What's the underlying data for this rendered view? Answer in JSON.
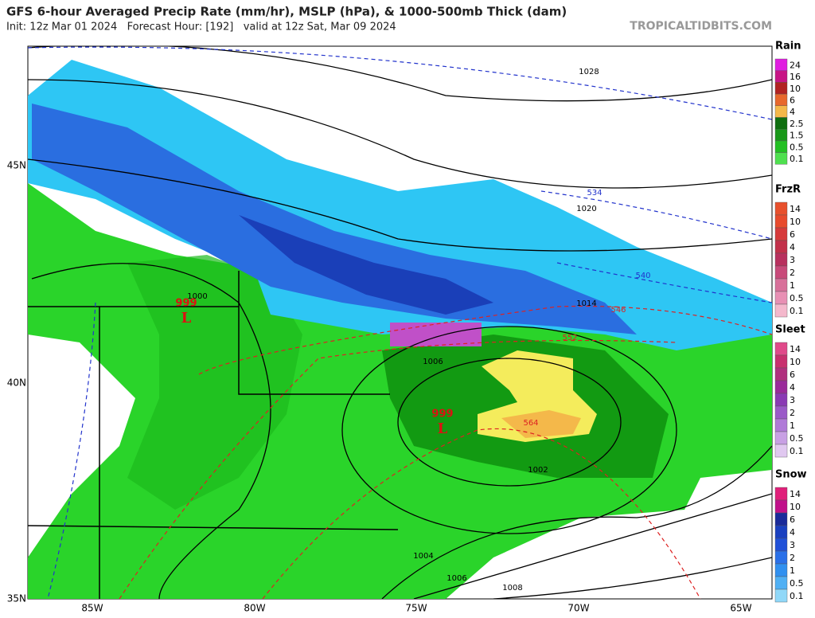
{
  "header": {
    "title": "GFS 6-hour Averaged Precip Rate (mm/hr), MSLP (hPa), & 1000-500mb Thick (dam)",
    "subtitle": "Init: 12z Mar 01 2024   Forecast Hour: [192]   valid at 12z Sat, Mar 09 2024",
    "site": "TROPICALTIDBITS.COM"
  },
  "map": {
    "lat_labels": [
      "45N",
      "40N",
      "35N"
    ],
    "lon_labels": [
      "85W",
      "80W",
      "75W",
      "70W",
      "65W"
    ],
    "isobar_labels": [
      "1028",
      "1020",
      "1014",
      "1006",
      "1000",
      "1002",
      "1004",
      "1006",
      "1008"
    ],
    "thickness_labels": [
      "534",
      "540",
      "546",
      "552",
      "564"
    ],
    "lows": [
      {
        "pressure": "999",
        "symbol": "L"
      },
      {
        "pressure": "999",
        "symbol": "L"
      }
    ]
  },
  "legend": [
    {
      "title": "Rain",
      "labels": [
        "24",
        "16",
        "10",
        "6",
        "4",
        "2.5",
        "1.5",
        "0.5",
        "0.1"
      ]
    },
    {
      "title": "FrzR",
      "labels": [
        "14",
        "10",
        "6",
        "4",
        "3",
        "2",
        "1",
        "0.5",
        "0.1"
      ]
    },
    {
      "title": "Sleet",
      "labels": [
        "14",
        "10",
        "6",
        "4",
        "3",
        "2",
        "1",
        "0.5",
        "0.1"
      ]
    },
    {
      "title": "Snow",
      "labels": [
        "14",
        "10",
        "6",
        "4",
        "3",
        "2",
        "1",
        "0.5",
        "0.1"
      ]
    }
  ]
}
